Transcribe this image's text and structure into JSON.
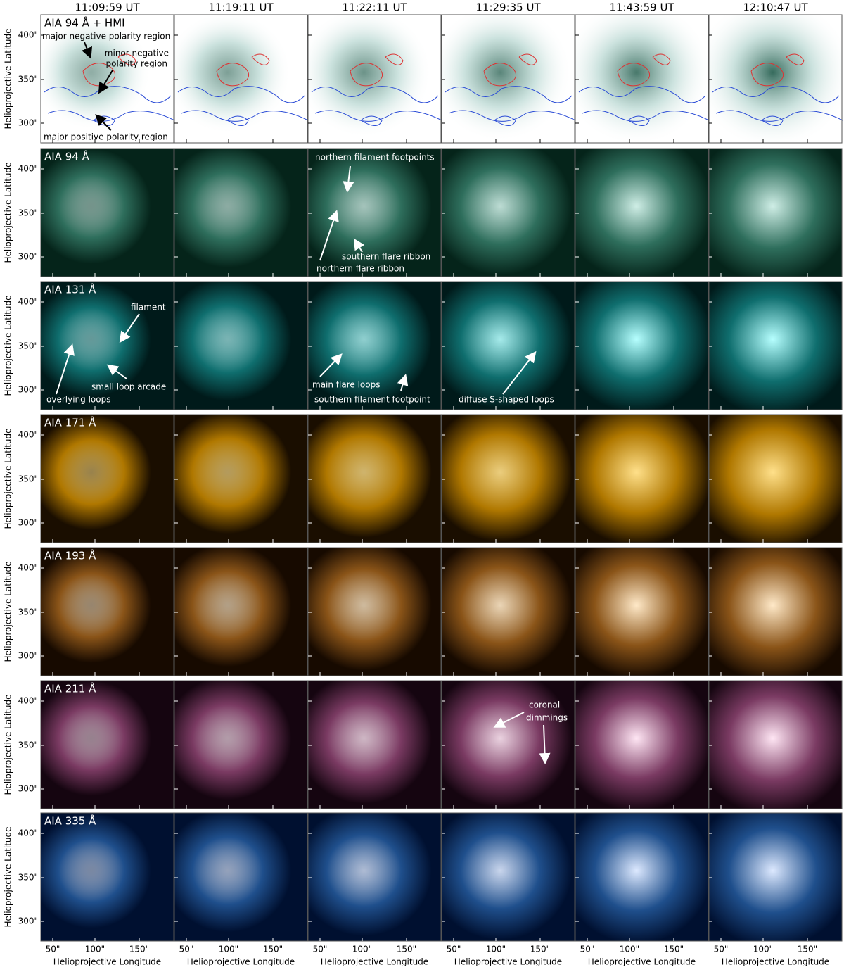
{
  "figure": {
    "times": [
      "11:09:59 UT",
      "11:19:11 UT",
      "11:22:11 UT",
      "11:29:35 UT",
      "11:43:59 UT",
      "12:10:47 UT"
    ],
    "rows": [
      {
        "label": "AIA 94 Å + HMI"
      },
      {
        "label": "AIA 94 Å"
      },
      {
        "label": "AIA 131 Å"
      },
      {
        "label": "AIA 171 Å"
      },
      {
        "label": "AIA 193 Å"
      },
      {
        "label": "AIA 211 Å"
      },
      {
        "label": "AIA 335 Å"
      }
    ],
    "y_axis_label": "Helioprojective Latitude",
    "x_axis_label": "Helioprojective Longitude",
    "yticks": [
      "400\"",
      "350\"",
      "300\""
    ],
    "xticks": [
      "50\"",
      "100\"",
      "150\""
    ],
    "annotations": [
      "major negative polarity region",
      "minor negative",
      "polarity region",
      "major positive polarity region",
      "northern filament footpoints",
      "southern flare ribbon",
      "northern flare ribbon",
      "filament",
      "small loop arcade",
      "overlying loops",
      "main flare loops",
      "southern filament footpoint",
      "diffuse S-shaped loops",
      "coronal",
      "dimmings"
    ]
  }
}
